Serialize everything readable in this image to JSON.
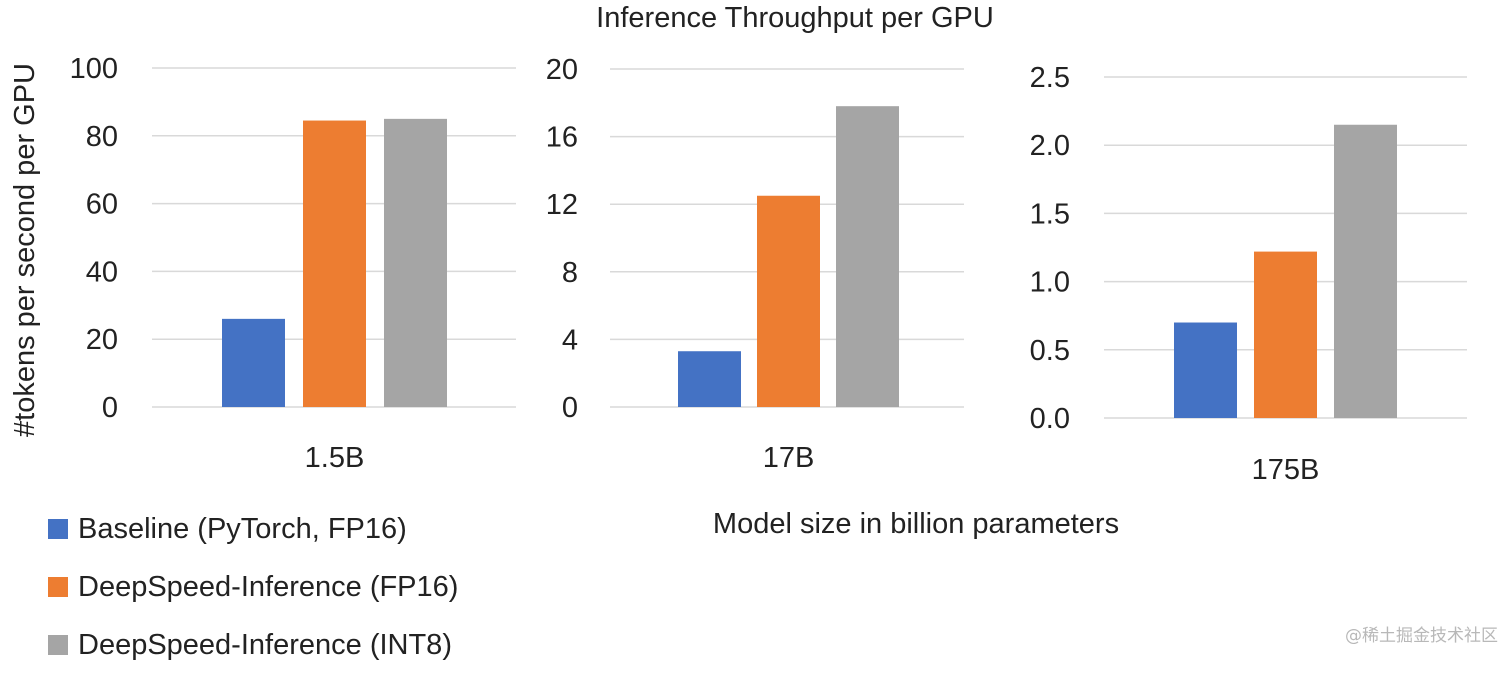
{
  "title": "Inference Throughput per GPU",
  "xlabel": "Model size in billion parameters",
  "ylabel": "#tokens per second per GPU",
  "watermark": "@稀土掘金技术社区",
  "colors": {
    "baseline": "#4472C4",
    "fp16": "#ED7D31",
    "int8": "#A5A5A5",
    "grid": "#D9D9D9"
  },
  "legend": [
    {
      "label": "Baseline (PyTorch, FP16)",
      "color": "#4472C4"
    },
    {
      "label": "DeepSpeed-Inference (FP16)",
      "color": "#ED7D31"
    },
    {
      "label": "DeepSpeed-Inference (INT8)",
      "color": "#A5A5A5"
    }
  ],
  "chart_data": [
    {
      "type": "bar",
      "category": "1.5B",
      "ylim": [
        0,
        100
      ],
      "yticks": [
        "0",
        "20",
        "40",
        "60",
        "80",
        "100"
      ],
      "series": [
        {
          "name": "Baseline (PyTorch, FP16)",
          "values": [
            26
          ]
        },
        {
          "name": "DeepSpeed-Inference (FP16)",
          "values": [
            84.5
          ]
        },
        {
          "name": "DeepSpeed-Inference (INT8)",
          "values": [
            85
          ]
        }
      ]
    },
    {
      "type": "bar",
      "category": "17B",
      "ylim": [
        0,
        20
      ],
      "yticks": [
        "0",
        "4",
        "8",
        "12",
        "16",
        "20"
      ],
      "series": [
        {
          "name": "Baseline (PyTorch, FP16)",
          "values": [
            3.3
          ]
        },
        {
          "name": "DeepSpeed-Inference (FP16)",
          "values": [
            12.5
          ]
        },
        {
          "name": "DeepSpeed-Inference (INT8)",
          "values": [
            17.8
          ]
        }
      ]
    },
    {
      "type": "bar",
      "category": "175B",
      "ylim": [
        0,
        2.5
      ],
      "yticks": [
        "0.0",
        "0.5",
        "1.0",
        "1.5",
        "2.0",
        "2.5"
      ],
      "series": [
        {
          "name": "Baseline (PyTorch, FP16)",
          "values": [
            0.7
          ]
        },
        {
          "name": "DeepSpeed-Inference (FP16)",
          "values": [
            1.22
          ]
        },
        {
          "name": "DeepSpeed-Inference (INT8)",
          "values": [
            2.15
          ]
        }
      ]
    }
  ]
}
